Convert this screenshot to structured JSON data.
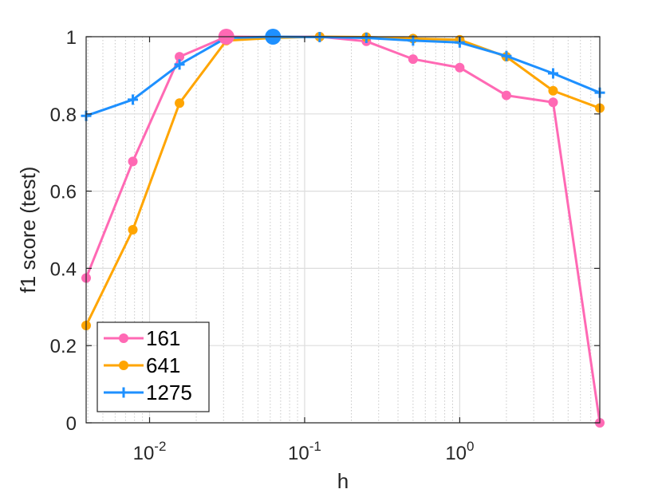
{
  "chart_data": {
    "type": "line",
    "xscale": "log",
    "xlim": [
      0.0039,
      8
    ],
    "ylim": [
      0,
      1
    ],
    "xlabel": "h",
    "ylabel": "f1 score (test)",
    "grid": true,
    "minor_grid_x": true,
    "legend_placement": "bottom-left",
    "x_ticks": [
      {
        "value": 0.01,
        "base": "10",
        "exp": "-2"
      },
      {
        "value": 0.1,
        "base": "10",
        "exp": "-1"
      },
      {
        "value": 1,
        "base": "10",
        "exp": "0"
      }
    ],
    "y_ticks": [
      {
        "value": 0,
        "label": "0"
      },
      {
        "value": 0.2,
        "label": "0.2"
      },
      {
        "value": 0.4,
        "label": "0.4"
      },
      {
        "value": 0.6,
        "label": "0.6"
      },
      {
        "value": 0.8,
        "label": "0.8"
      },
      {
        "value": 1,
        "label": "1"
      }
    ],
    "x": [
      0.0039,
      0.0078,
      0.0156,
      0.03125,
      0.0625,
      0.125,
      0.25,
      0.5,
      1,
      2,
      4,
      8
    ],
    "series": [
      {
        "name": "161",
        "color": "#ff69b4",
        "marker": "circle",
        "values": [
          0.375,
          0.677,
          0.948,
          1.0,
          0.999,
          1.0,
          0.988,
          0.942,
          0.92,
          0.848,
          0.83,
          0.0
        ],
        "highlight_index": 3
      },
      {
        "name": "641",
        "color": "#ffa500",
        "marker": "circle",
        "values": [
          0.252,
          0.5,
          0.828,
          0.99,
          0.997,
          1.0,
          0.999,
          0.995,
          0.992,
          0.948,
          0.86,
          0.815
        ]
      },
      {
        "name": "1275",
        "color": "#1e90ff",
        "marker": "plus",
        "values": [
          0.795,
          0.837,
          0.928,
          0.997,
          1.0,
          0.999,
          0.997,
          0.99,
          0.985,
          0.95,
          0.905,
          0.855
        ],
        "highlight_index": 4
      }
    ]
  }
}
